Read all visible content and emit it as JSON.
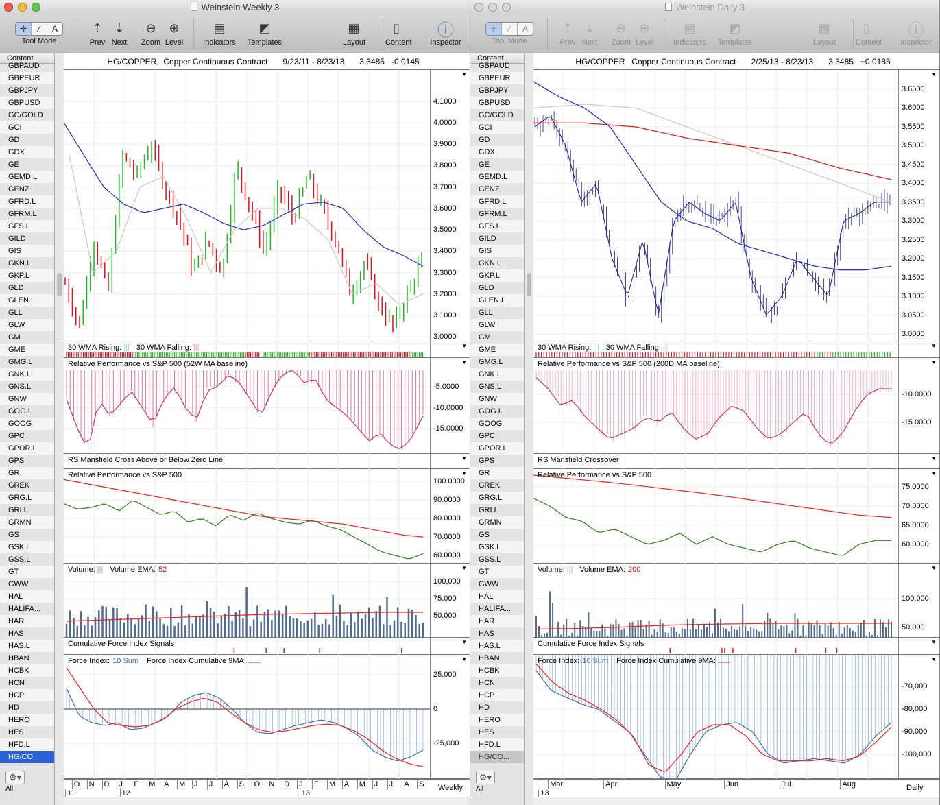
{
  "windows": [
    {
      "title": "Weinstein Weekly 3",
      "active": true,
      "toolbar": {
        "tool_mode": "Tool Mode",
        "prev": "Prev",
        "next": "Next",
        "zoom": "Zoom",
        "level": "Level",
        "indicators": "Indicators",
        "templates": "Templates",
        "layout": "Layout",
        "content": "Content",
        "inspector": "Inspector",
        "mode_symbols": [
          "✛",
          "∕",
          "A"
        ]
      },
      "sidebar": {
        "header": "Content",
        "selected": "HG/CO...",
        "footer": "All"
      },
      "header": {
        "symbol": "HG/COPPER",
        "name": "Copper Continuous Contract",
        "range": "9/23/11 - 8/23/13",
        "last": "3.3485",
        "change": "-0.0145"
      },
      "panels": {
        "price": {
          "ticks": [
            "4.1000",
            "4.0000",
            "3.9000",
            "3.8000",
            "3.7000",
            "3.6000",
            "3.5000",
            "3.4000",
            "3.3000",
            "3.2000",
            "3.1000",
            "3.0000"
          ],
          "tick_values": [
            4.1,
            4.0,
            3.9,
            3.8,
            3.7,
            3.6,
            3.5,
            3.4,
            3.3,
            3.2,
            3.1,
            3.0
          ],
          "range": [
            2.978,
            4.247
          ],
          "closes": [
            3.25,
            3.05,
            3.45,
            3.2,
            3.85,
            3.75,
            3.9,
            3.7,
            3.55,
            3.3,
            3.45,
            3.3,
            3.8,
            3.6,
            3.4,
            3.7,
            3.55,
            3.75,
            3.6,
            3.45,
            3.2,
            3.35,
            3.15,
            3.05,
            3.2,
            3.35
          ],
          "ma30": [
            4.0,
            3.85,
            3.7,
            3.62,
            3.58,
            3.6,
            3.62,
            3.58,
            3.53,
            3.5,
            3.52,
            3.57,
            3.62,
            3.63,
            3.6,
            3.5,
            3.42,
            3.38,
            3.33
          ],
          "ma10": [
            3.85,
            3.3,
            3.4,
            3.7,
            3.75,
            3.55,
            3.3,
            3.5,
            3.6,
            3.6,
            3.55,
            3.45,
            3.2,
            3.25,
            3.15,
            3.2
          ],
          "bars": 100
        },
        "wma": {
          "rising_label": "30 WMA Rising:",
          "falling_label": "30 WMA Falling:",
          "signals": "rrrrrrrrrrrrrrrrrrrrrrrrrrrrrrrrrrrrrrrrrgggggggggggggggggggggggggggggggggggggggggggggggggggggggggggggggggrrrrrrrrr  ggggggggggggggggggggggggggggrrrrrrrrrrrrrrrrrrrrrrrrrrrrrrrrrrrrrrrrrrrrrrrrrrrrrrrrrrrgggggggg"
        },
        "rp1": {
          "title": "Relative Performance vs S&P 500 (52W MA baseline)",
          "ticks": [
            "-5.0000",
            "-10.0000",
            "-15.0000"
          ],
          "tick_values": [
            -5,
            -10,
            -15
          ],
          "range": [
            -21.07,
            1.9
          ],
          "baseline": -1,
          "values": [
            -8,
            -15,
            -20,
            -8,
            -12,
            -9,
            -6,
            -10,
            -14,
            -8,
            -5,
            -10,
            -13,
            -6,
            -5,
            -2,
            -4,
            -8,
            -12,
            -6,
            -2,
            -1,
            -4,
            -3,
            -8,
            -10,
            -12,
            -15,
            -18,
            -16,
            -19,
            -20,
            -17,
            -12
          ]
        },
        "rsm": {
          "title": "RS Mansfield Cross Above or Below Zero Line"
        },
        "rp2": {
          "title": "Relative Performance vs S&P 500",
          "ticks": [
            "100.0000",
            "90.0000",
            "80.0000",
            "70.0000",
            "60.0000"
          ],
          "tick_values": [
            100,
            90,
            80,
            70,
            60
          ],
          "range": [
            55.6,
            106.7
          ],
          "ratio": [
            88,
            85,
            86,
            88,
            84,
            90,
            86,
            82,
            84,
            78,
            80,
            76,
            82,
            79,
            83,
            80,
            78,
            77,
            79,
            76,
            74,
            70,
            66,
            62,
            60,
            58,
            61
          ],
          "ma": [
            101,
            99,
            97,
            95,
            93,
            91,
            89,
            87,
            85,
            83,
            81,
            80,
            79,
            78,
            77,
            75,
            73,
            71,
            70
          ]
        },
        "vol": {
          "label": "Volume:",
          "ema_label": "Volume EMA:",
          "ema_period": "52",
          "ticks": [
            "100,000",
            "75,000",
            "50,000"
          ],
          "tick_values": [
            100000,
            75000,
            50000
          ],
          "range": [
            18000,
            126000
          ],
          "bars": 100,
          "ema": [
            42000,
            44000,
            46000,
            48000,
            50000,
            52000,
            53000,
            54000,
            55000,
            55000
          ]
        },
        "cfi": {
          "title": "Cumulative Force Index Signals",
          "signals": [
            47,
            56,
            61,
            71,
            94
          ],
          "count": 100
        },
        "force": {
          "label": "Force Index:",
          "sum_label": "10 Sum",
          "ma_label": "Force Index Cumulative 9MA:",
          "ticks": [
            "25,000",
            "0",
            "-25,000"
          ],
          "tick_values": [
            25000,
            0,
            -25000
          ],
          "range": [
            -51000,
            39500
          ],
          "baseline": 0,
          "sum": [
            15000,
            -5000,
            -10000,
            -12000,
            -10000,
            -15000,
            -14000,
            -10000,
            -5000,
            5000,
            10000,
            12000,
            8000,
            0,
            -10000,
            -17000,
            -18000,
            -15000,
            -12000,
            -10000,
            -8000,
            -10000,
            -14000,
            -20000,
            -30000,
            -35000,
            -38000,
            -35000,
            -30000
          ],
          "ma": [
            30000,
            15000,
            0,
            -10000,
            -12000,
            -13000,
            -12000,
            -8000,
            0,
            5000,
            8000,
            5000,
            -3000,
            -10000,
            -15000,
            -17000,
            -16000,
            -14000,
            -12000,
            -11000,
            -12000,
            -16000,
            -22000,
            -30000,
            -36000,
            -40000,
            -42000
          ]
        }
      },
      "time": {
        "months": [
          "O",
          "N",
          "D",
          "J",
          "F",
          "M",
          "A",
          "M",
          "J",
          "J",
          "A",
          "S",
          "O",
          "N",
          "D",
          "J",
          "F",
          "M",
          "A",
          "M",
          "J",
          "J",
          "A",
          "S"
        ],
        "month_pos": [
          0.022,
          0.063,
          0.104,
          0.145,
          0.186,
          0.227,
          0.268,
          0.309,
          0.35,
          0.391,
          0.432,
          0.473,
          0.514,
          0.555,
          0.596,
          0.637,
          0.678,
          0.719,
          0.76,
          0.801,
          0.842,
          0.883,
          0.924,
          0.965
        ],
        "years": [
          "11",
          "12",
          "13"
        ],
        "year_pos": [
          0,
          0.149,
          0.64
        ],
        "period": "Weekly"
      }
    },
    {
      "title": "Weinstein Daily 3",
      "active": false,
      "toolbar": {
        "tool_mode": "Tool Mode",
        "prev": "Prev",
        "next": "Next",
        "zoom": "Zoom",
        "level": "Level",
        "indicators": "Indicators",
        "templates": "Templates",
        "layout": "Layout",
        "content": "Content",
        "inspector": "Inspector",
        "mode_symbols": [
          "✛",
          "∕",
          "A"
        ]
      },
      "sidebar": {
        "header": "Content",
        "selected": "HG/CO...",
        "footer": "All"
      },
      "header": {
        "symbol": "HG/COPPER",
        "name": "Copper Continuous Contract",
        "range": "2/25/13 - 8/23/13",
        "last": "3.3485",
        "change": "+0.0185"
      },
      "panels": {
        "price": {
          "ticks": [
            "3.6500",
            "3.6000",
            "3.5500",
            "3.5000",
            "3.4500",
            "3.4000",
            "3.3500",
            "3.3000",
            "3.2500",
            "3.2000",
            "3.1500",
            "3.1000",
            "3.0500",
            "3.0000"
          ],
          "tick_values": [
            3.65,
            3.6,
            3.55,
            3.5,
            3.45,
            3.4,
            3.35,
            3.3,
            3.25,
            3.2,
            3.15,
            3.1,
            3.05,
            3.0
          ],
          "range": [
            2.98,
            3.701
          ],
          "closes": [
            3.55,
            3.58,
            3.5,
            3.35,
            3.4,
            3.2,
            3.1,
            3.25,
            3.05,
            3.3,
            3.35,
            3.32,
            3.3,
            3.35,
            3.15,
            3.05,
            3.1,
            3.2,
            3.15,
            3.1,
            3.3,
            3.32,
            3.35,
            3.35
          ],
          "ma30": [
            3.67,
            3.63,
            3.6,
            3.55,
            3.45,
            3.35,
            3.3,
            3.28,
            3.24,
            3.22,
            3.2,
            3.18,
            3.17,
            3.17,
            3.18
          ],
          "ma200": [
            3.56,
            3.56,
            3.55,
            3.52,
            3.5,
            3.48,
            3.44,
            3.41
          ],
          "ma10": [
            3.6,
            3.61,
            3.6,
            3.55,
            3.5,
            3.45,
            3.4,
            3.35
          ],
          "bars": 130
        },
        "wma": {
          "rising_label": "30 WMA Rising:",
          "falling_label": "30 WMA Falling:",
          "signals": "rrrrrrrrrrrrrrrrrrrrrrrrrrrrrrrrrrrrrrrrrrrrrrrrrrrrrrrrrrrrrrrrrrrrrrrrrrrrrrrrrrrrrrrrrrrrrrrrrrrrrrrrrrrrgggrrrggggggggggggggggggggggg"
        },
        "rp1": {
          "title": "Relative Performance vs S&P 500 (200D MA baseline)",
          "ticks": [
            "-10.0000",
            "-15.0000"
          ],
          "tick_values": [
            -10,
            -15
          ],
          "range": [
            -20.6,
            -3.5
          ],
          "baseline": -5.7,
          "values": [
            -7,
            -9,
            -12,
            -11,
            -14,
            -16,
            -18,
            -17,
            -16,
            -14,
            -15,
            -13,
            -16,
            -18,
            -17,
            -14,
            -12,
            -13,
            -16,
            -18,
            -17,
            -15,
            -13,
            -17,
            -19,
            -17,
            -13,
            -10,
            -9,
            -9
          ]
        },
        "rsm": {
          "title": "RS Mansfield Crossover"
        },
        "rp2": {
          "title": "Relative Performance vs S&P 500",
          "ticks": [
            "75.0000",
            "70.0000",
            "65.0000",
            "60.0000"
          ],
          "tick_values": [
            75,
            70,
            65,
            60
          ],
          "range": [
            55,
            79.6
          ],
          "ratio": [
            72,
            70,
            67,
            66,
            63,
            64,
            62,
            60,
            61,
            63,
            60,
            62,
            60,
            59,
            58,
            60,
            61,
            59,
            58,
            57,
            60,
            61,
            61
          ],
          "ma": [
            78,
            77.2,
            76.4,
            75.5,
            74.5,
            73.5,
            72.4,
            71.2,
            70,
            68.8,
            67.6,
            67
          ]
        },
        "vol": {
          "label": "Volume:",
          "ema_label": "Volume EMA:",
          "ema_period": "200",
          "ticks": [
            "100,000",
            "50,000"
          ],
          "tick_values": [
            100000,
            50000
          ],
          "range": [
            32000,
            160700
          ],
          "bars": 130,
          "ema": [
            47000,
            48000,
            50000,
            53000,
            55000,
            56000,
            57000,
            57000,
            57000,
            57000
          ]
        },
        "cfi": {
          "title": "Cumulative Force Index Signals",
          "signals": [
            49,
            68,
            69,
            72,
            95,
            106,
            110
          ],
          "count": 130
        },
        "force": {
          "label": "Force Index:",
          "sum_label": "10 Sum",
          "ma_label": "Force Index Cumulative 9MA:",
          "ticks": [
            "-70,000",
            "-80,000",
            "-90,000",
            "-100,000"
          ],
          "tick_values": [
            -70000,
            -80000,
            -90000,
            -100000
          ],
          "range": [
            -111000,
            -56000
          ],
          "baseline": -56000,
          "sum": [
            -63000,
            -72000,
            -75000,
            -78000,
            -80000,
            -85000,
            -90000,
            -100000,
            -110000,
            -112000,
            -100000,
            -90000,
            -87000,
            -86000,
            -90000,
            -100000,
            -104000,
            -103000,
            -102000,
            -103000,
            -104000,
            -100000,
            -92000,
            -86000
          ],
          "ma": [
            -60000,
            -68000,
            -73000,
            -76000,
            -80000,
            -85000,
            -92000,
            -105000,
            -108000,
            -100000,
            -90000,
            -87000,
            -87000,
            -92000,
            -100000,
            -103000,
            -103000,
            -103000,
            -102000,
            -103000,
            -101000,
            -95000,
            -88000
          ]
        }
      },
      "time": {
        "months": [
          "Mar",
          "Apr",
          "May",
          "Jun",
          "Jul",
          "Aug"
        ],
        "month_pos": [
          0.04,
          0.192,
          0.36,
          0.523,
          0.674,
          0.841
        ],
        "years": [
          "13"
        ],
        "year_pos": [
          0.01
        ],
        "period": "Daily"
      }
    }
  ],
  "symbols": [
    "GBPAUD",
    "GBPEUR",
    "GBPJPY",
    "GBPUSD",
    "GC/GOLD",
    "GCI",
    "GD",
    "GDX",
    "GE",
    "GEMD.L",
    "GENZ",
    "GFRD.L",
    "GFRM.L",
    "GFS.L",
    "GILD",
    "GIS",
    "GKN.L",
    "GKP.L",
    "GLD",
    "GLEN.L",
    "GLL",
    "GLW",
    "GM",
    "GME",
    "GMG.L",
    "GNK.L",
    "GNS.L",
    "GNW",
    "GOG.L",
    "GOOG",
    "GPC",
    "GPOR.L",
    "GPS",
    "GR",
    "GREK",
    "GRG.L",
    "GRI.L",
    "GRMN",
    "GS",
    "GSK.L",
    "GSS.L",
    "GT",
    "GWW",
    "HAL",
    "HALIFA...",
    "HAR",
    "HAS",
    "HAS.L",
    "HBAN",
    "HCBK",
    "HCN",
    "HCP",
    "HD",
    "HERO",
    "HES",
    "HFD.L",
    "HG/CO..."
  ],
  "colors": {
    "up": "#1fb81f",
    "down": "#e0101c",
    "ma30": "#1a2bd0",
    "ma10": "#c8c8c8",
    "ma200": "#e81010",
    "rp_hist": "#d0306a",
    "ratio": "#2e7d1e",
    "vol": "#51698c",
    "force": "#3c6fc0",
    "ma_red": "#ff1a1a",
    "selected": "#2a62d5"
  }
}
